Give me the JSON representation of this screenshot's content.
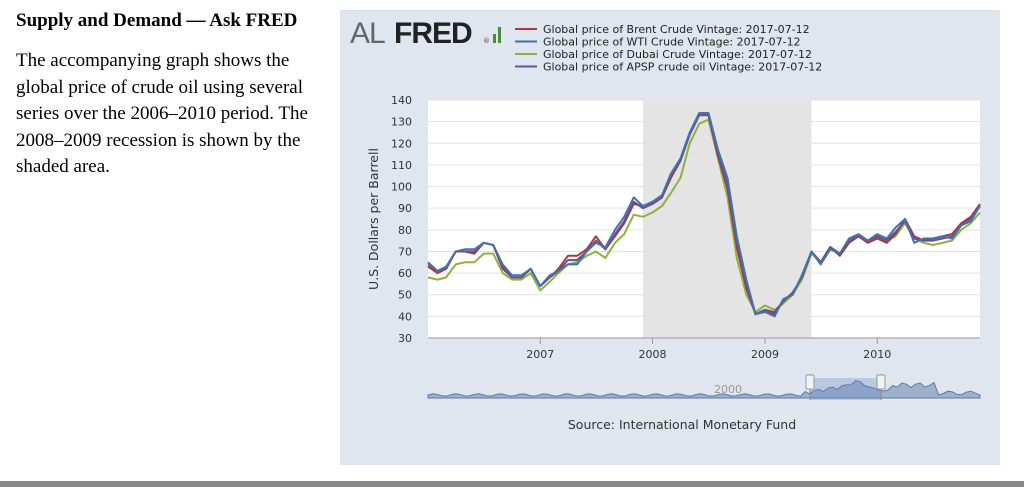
{
  "question": {
    "title": "Supply and Demand — Ask FRED",
    "body": "The accompanying graph shows the global price of crude oil using several series over the 2006–2010 period. The 2008–2009 recession is shown by the shaded area."
  },
  "brand": {
    "logo_light": "AL",
    "logo_bold": "FRED",
    "registered": "®"
  },
  "colors": {
    "panel_bg": "#dfe6ef",
    "recession": "#e4e4e4",
    "brent": "#a9373b",
    "wti": "#4572a7",
    "dubai": "#8cb23f",
    "apsp": "#6a4e96",
    "navigator": "#9fb0cc"
  },
  "source": "Source: International Monetary Fund",
  "navigator": {
    "label": "2000"
  },
  "chart_data": {
    "type": "line",
    "title": "",
    "xlabel": "",
    "ylabel": "U.S. Dollars per Barrell",
    "ylim": [
      30,
      140
    ],
    "yticks": [
      30,
      40,
      50,
      60,
      70,
      80,
      90,
      100,
      110,
      120,
      130,
      140
    ],
    "xlim": [
      "2006-01-01",
      "2010-12-01"
    ],
    "xticks": [
      {
        "label": "2007",
        "date": "2007-01-01"
      },
      {
        "label": "2008",
        "date": "2008-01-01"
      },
      {
        "label": "2009",
        "date": "2009-01-01"
      },
      {
        "label": "2010",
        "date": "2010-01-01"
      }
    ],
    "recession": {
      "start": "2007-12-01",
      "end": "2009-06-01"
    },
    "grid": true,
    "legend_position": "top",
    "x": [
      "2006-01-01",
      "2006-02-01",
      "2006-03-01",
      "2006-04-01",
      "2006-05-01",
      "2006-06-01",
      "2006-07-01",
      "2006-08-01",
      "2006-09-01",
      "2006-10-01",
      "2006-11-01",
      "2006-12-01",
      "2007-01-01",
      "2007-02-01",
      "2007-03-01",
      "2007-04-01",
      "2007-05-01",
      "2007-06-01",
      "2007-07-01",
      "2007-08-01",
      "2007-09-01",
      "2007-10-01",
      "2007-11-01",
      "2007-12-01",
      "2008-01-01",
      "2008-02-01",
      "2008-03-01",
      "2008-04-01",
      "2008-05-01",
      "2008-06-01",
      "2008-07-01",
      "2008-08-01",
      "2008-09-01",
      "2008-10-01",
      "2008-11-01",
      "2008-12-01",
      "2009-01-01",
      "2009-02-01",
      "2009-03-01",
      "2009-04-01",
      "2009-05-01",
      "2009-06-01",
      "2009-07-01",
      "2009-08-01",
      "2009-09-01",
      "2009-10-01",
      "2009-11-01",
      "2009-12-01",
      "2010-01-01",
      "2010-02-01",
      "2010-03-01",
      "2010-04-01",
      "2010-05-01",
      "2010-06-01",
      "2010-07-01",
      "2010-08-01",
      "2010-09-01",
      "2010-10-01",
      "2010-11-01",
      "2010-12-01"
    ],
    "series": [
      {
        "name": "Global price of Brent Crude Vintage: 2017-07-12",
        "color_key": "brent",
        "values": [
          63,
          60,
          62,
          70,
          70,
          69,
          74,
          73,
          62,
          58,
          58,
          62,
          54,
          58,
          62,
          68,
          68,
          71,
          77,
          71,
          77,
          83,
          92,
          91,
          92,
          95,
          104,
          112,
          124,
          133,
          133,
          114,
          99,
          72,
          53,
          41,
          43,
          41,
          47,
          51,
          58,
          70,
          65,
          72,
          68,
          74,
          77,
          74,
          76,
          74,
          78,
          85,
          77,
          75,
          76,
          77,
          78,
          83,
          86,
          92
        ]
      },
      {
        "name": "Global price of WTI Crude Vintage: 2017-07-12",
        "color_key": "wti",
        "values": [
          65,
          61,
          63,
          70,
          71,
          71,
          74,
          73,
          64,
          59,
          59,
          62,
          54,
          59,
          61,
          64,
          64,
          70,
          74,
          72,
          80,
          86,
          95,
          91,
          93,
          96,
          106,
          113,
          125,
          134,
          134,
          117,
          104,
          77,
          57,
          41,
          42,
          40,
          48,
          50,
          59,
          70,
          64,
          71,
          69,
          76,
          78,
          75,
          78,
          76,
          81,
          85,
          74,
          76,
          76,
          77,
          76,
          82,
          84,
          91
        ]
      },
      {
        "name": "Global price of Dubai Crude Vintage: 2017-07-12",
        "color_key": "dubai",
        "values": [
          58,
          57,
          58,
          64,
          65,
          65,
          69,
          69,
          60,
          57,
          57,
          60,
          52,
          56,
          60,
          64,
          65,
          68,
          70,
          67,
          74,
          78,
          87,
          86,
          88,
          91,
          97,
          104,
          120,
          129,
          131,
          113,
          95,
          67,
          50,
          42,
          45,
          43,
          46,
          50,
          57,
          69,
          65,
          72,
          69,
          75,
          77,
          75,
          77,
          75,
          77,
          83,
          76,
          74,
          73,
          74,
          75,
          80,
          83,
          88
        ]
      },
      {
        "name": "Global price of APSP crude oil Vintage: 2017-07-12",
        "color_key": "apsp",
        "values": [
          64,
          61,
          62,
          70,
          70,
          70,
          74,
          73,
          63,
          58,
          58,
          62,
          54,
          58,
          61,
          66,
          66,
          70,
          75,
          71,
          78,
          84,
          93,
          90,
          92,
          95,
          105,
          112,
          124,
          133,
          133,
          115,
          101,
          75,
          55,
          41,
          43,
          42,
          47,
          51,
          58,
          70,
          65,
          72,
          69,
          75,
          77,
          75,
          77,
          75,
          79,
          84,
          76,
          75,
          75,
          76,
          77,
          82,
          85,
          91
        ]
      }
    ]
  }
}
